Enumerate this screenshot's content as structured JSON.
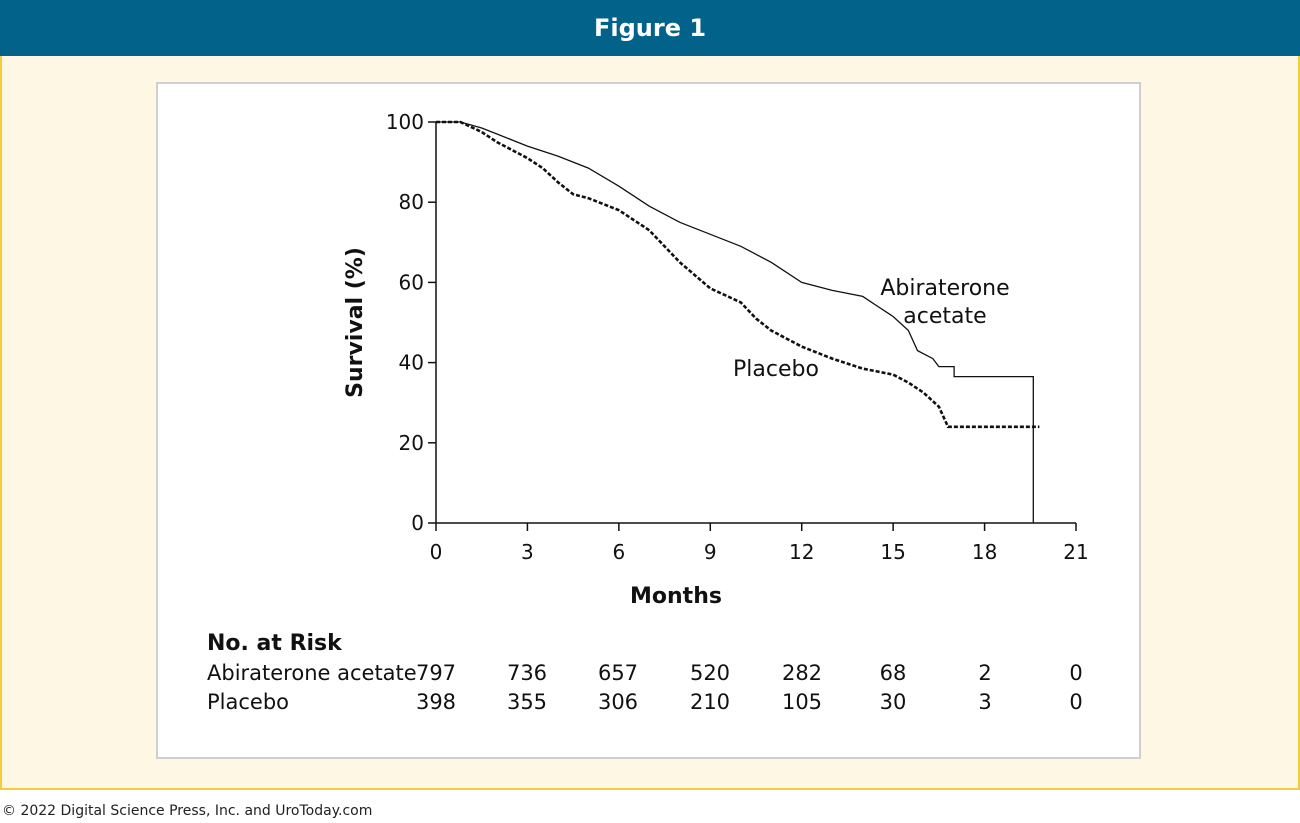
{
  "header": {
    "title": "Figure 1"
  },
  "footer": {
    "copyright": "© 2022 Digital Science Press, Inc. and UroToday.com"
  },
  "colors": {
    "header_bg": "#02628a",
    "frame_bg": "#fef7e4",
    "frame_border": "#f5cd3c",
    "line": "#111111"
  },
  "chart_data": {
    "type": "line",
    "title": "",
    "xlabel": "Months",
    "ylabel": "Survival (%)",
    "xlim": [
      0,
      21
    ],
    "ylim": [
      0,
      100
    ],
    "xticks": [
      0,
      3,
      6,
      9,
      12,
      15,
      18,
      21
    ],
    "yticks": [
      0,
      20,
      40,
      60,
      80,
      100
    ],
    "grid": false,
    "series": [
      {
        "name": "Abiraterone acetate",
        "label_lines": [
          "Abiraterone",
          "acetate"
        ],
        "style": "solid",
        "points": [
          [
            0,
            100
          ],
          [
            0.8,
            100
          ],
          [
            1.5,
            98.5
          ],
          [
            2,
            97
          ],
          [
            3,
            94
          ],
          [
            4,
            91.5
          ],
          [
            5,
            88.5
          ],
          [
            6,
            84
          ],
          [
            7,
            79
          ],
          [
            8,
            75
          ],
          [
            9,
            72
          ],
          [
            10,
            69
          ],
          [
            11,
            65
          ],
          [
            12,
            60
          ],
          [
            13,
            58
          ],
          [
            14,
            56.5
          ],
          [
            14.5,
            54
          ],
          [
            15,
            51.5
          ],
          [
            15.5,
            48
          ],
          [
            15.8,
            43
          ],
          [
            16.3,
            41
          ],
          [
            16.5,
            39
          ],
          [
            17,
            39
          ],
          [
            17,
            36.5
          ],
          [
            19.6,
            36.5
          ],
          [
            19.6,
            0
          ]
        ]
      },
      {
        "name": "Placebo",
        "label_lines": [
          "Placebo"
        ],
        "style": "dashed",
        "points": [
          [
            0,
            100
          ],
          [
            0.8,
            100
          ],
          [
            1.5,
            97.5
          ],
          [
            2,
            95
          ],
          [
            2.5,
            93
          ],
          [
            3,
            91
          ],
          [
            3.5,
            88.5
          ],
          [
            4,
            85
          ],
          [
            4.5,
            82
          ],
          [
            5,
            81
          ],
          [
            6,
            78
          ],
          [
            7,
            73
          ],
          [
            8,
            65
          ],
          [
            9,
            58.5
          ],
          [
            10,
            55
          ],
          [
            10.5,
            51
          ],
          [
            11,
            48
          ],
          [
            12,
            44
          ],
          [
            13,
            41
          ],
          [
            14,
            38.5
          ],
          [
            15,
            37
          ],
          [
            15.5,
            35
          ],
          [
            16,
            32.5
          ],
          [
            16.5,
            29
          ],
          [
            16.8,
            24
          ],
          [
            19.8,
            24
          ]
        ]
      }
    ],
    "risk_table": {
      "title": "No. at Risk",
      "times": [
        0,
        3,
        6,
        9,
        12,
        15,
        18,
        21
      ],
      "rows": [
        {
          "label": "Abiraterone acetate",
          "values": [
            797,
            736,
            657,
            520,
            282,
            68,
            2,
            0
          ]
        },
        {
          "label": "Placebo",
          "values": [
            398,
            355,
            306,
            210,
            105,
            30,
            3,
            0
          ]
        }
      ]
    }
  }
}
